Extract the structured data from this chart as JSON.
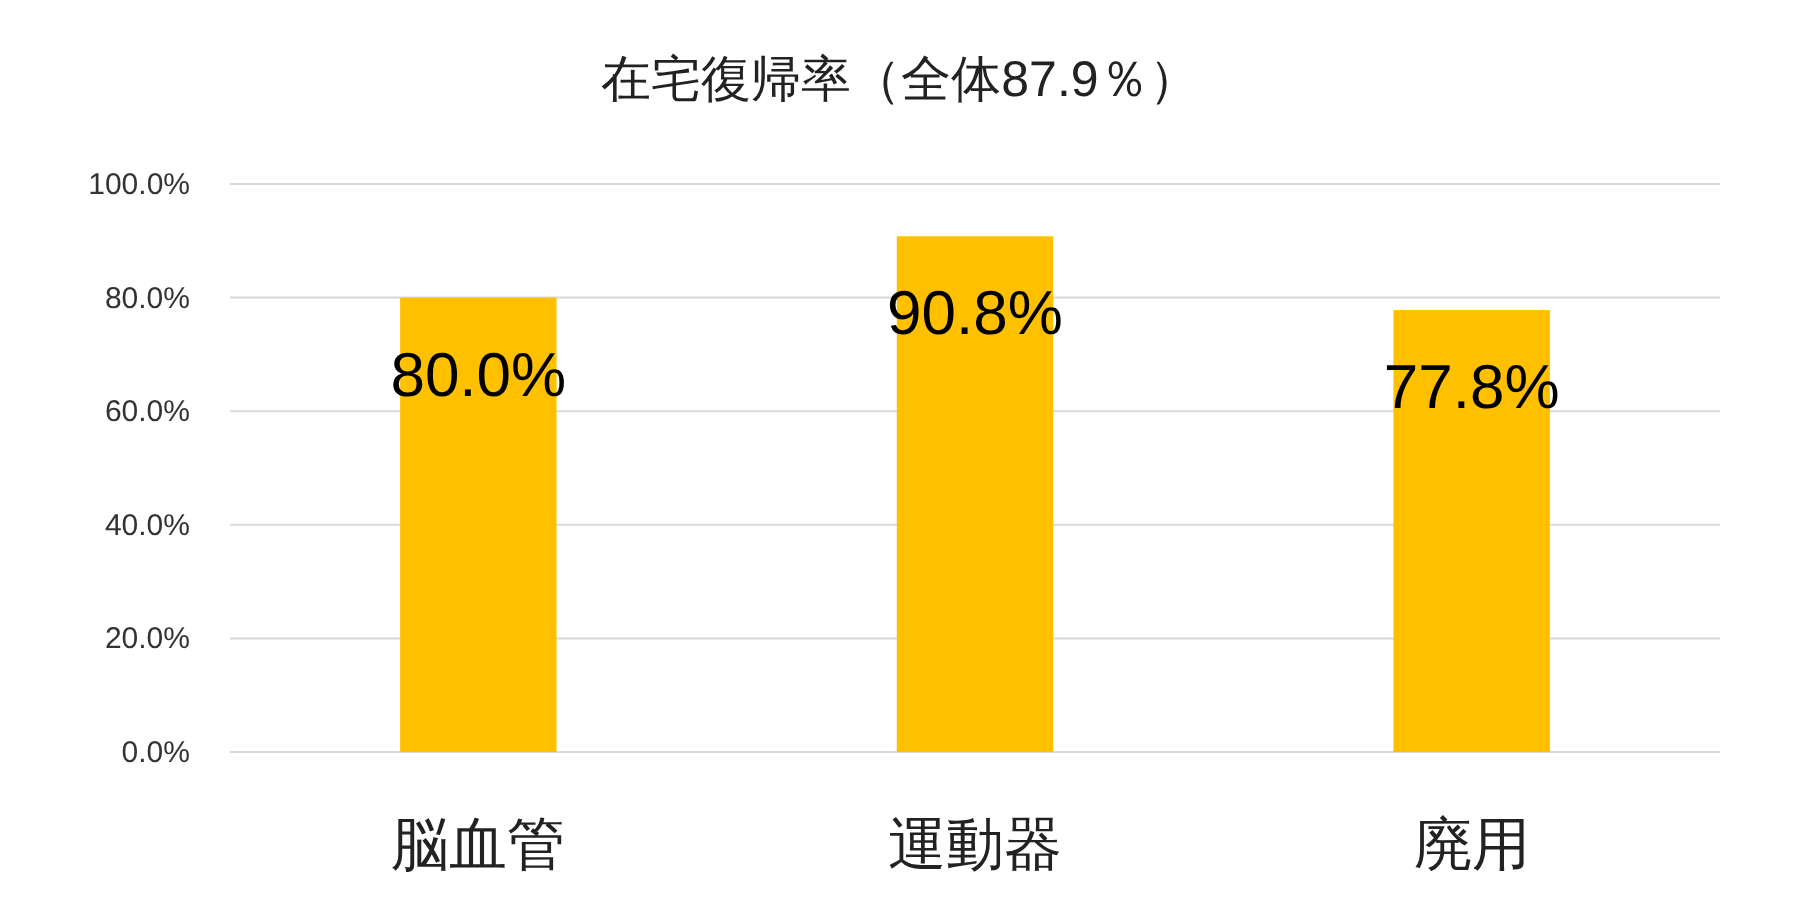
{
  "chart_data": {
    "type": "bar",
    "title": "在宅復帰率（全体87.9％）",
    "categories": [
      "脳血管",
      "運動器",
      "廃用"
    ],
    "values": [
      80.0,
      90.8,
      77.8
    ],
    "value_labels": [
      "80.0%",
      "90.8%",
      "77.8%"
    ],
    "color": "#ffc000",
    "ylim": [
      0,
      100
    ],
    "yticks": [
      {
        "value": 0,
        "label": "0.0%"
      },
      {
        "value": 20,
        "label": "20.0%"
      },
      {
        "value": 40,
        "label": "40.0%"
      },
      {
        "value": 60,
        "label": "60.0%"
      },
      {
        "value": 80,
        "label": "80.0%"
      },
      {
        "value": 100,
        "label": "100.0%"
      }
    ],
    "grid": "y"
  }
}
